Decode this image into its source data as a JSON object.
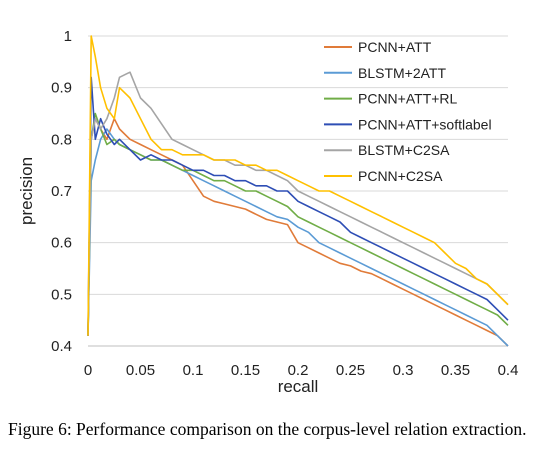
{
  "chart_data": {
    "type": "line",
    "title": "",
    "xlabel": "recall",
    "ylabel": "precision",
    "xlim": [
      0,
      0.4
    ],
    "ylim": [
      0.4,
      1
    ],
    "xticks": [
      "0",
      "0.05",
      "0.1",
      "0.15",
      "0.2",
      "0.25",
      "0.3",
      "0.35",
      "0.4"
    ],
    "yticks": [
      "0.4",
      "0.5",
      "0.6",
      "0.7",
      "0.8",
      "0.9",
      "1"
    ],
    "legend_position": "top-right",
    "series": [
      {
        "name": "PCNN+ATT",
        "color": "#e07b39",
        "x": [
          0.0,
          0.003,
          0.007,
          0.012,
          0.018,
          0.025,
          0.03,
          0.04,
          0.05,
          0.06,
          0.07,
          0.08,
          0.09,
          0.1,
          0.11,
          0.12,
          0.13,
          0.14,
          0.15,
          0.16,
          0.17,
          0.18,
          0.19,
          0.2,
          0.21,
          0.22,
          0.23,
          0.24,
          0.25,
          0.26,
          0.27,
          0.28,
          0.29,
          0.3,
          0.31,
          0.32,
          0.33,
          0.34,
          0.35,
          0.36,
          0.37,
          0.38,
          0.39,
          0.4
        ],
        "y": [
          0.42,
          0.8,
          0.84,
          0.82,
          0.8,
          0.84,
          0.82,
          0.8,
          0.79,
          0.78,
          0.77,
          0.76,
          0.75,
          0.72,
          0.69,
          0.68,
          0.675,
          0.67,
          0.665,
          0.655,
          0.645,
          0.64,
          0.635,
          0.6,
          0.59,
          0.58,
          0.57,
          0.56,
          0.555,
          0.545,
          0.54,
          0.53,
          0.52,
          0.51,
          0.5,
          0.49,
          0.48,
          0.47,
          0.46,
          0.45,
          0.44,
          0.43,
          0.42,
          0.4
        ]
      },
      {
        "name": "BLSTM+2ATT",
        "color": "#5b9bd5",
        "x": [
          0.0,
          0.003,
          0.007,
          0.012,
          0.018,
          0.025,
          0.03,
          0.04,
          0.05,
          0.06,
          0.07,
          0.08,
          0.09,
          0.1,
          0.11,
          0.12,
          0.13,
          0.14,
          0.15,
          0.16,
          0.17,
          0.18,
          0.19,
          0.2,
          0.21,
          0.22,
          0.23,
          0.24,
          0.25,
          0.26,
          0.27,
          0.28,
          0.29,
          0.3,
          0.31,
          0.32,
          0.33,
          0.34,
          0.35,
          0.36,
          0.37,
          0.38,
          0.39,
          0.4
        ],
        "y": [
          0.42,
          0.72,
          0.76,
          0.8,
          0.82,
          0.8,
          0.79,
          0.78,
          0.77,
          0.76,
          0.76,
          0.75,
          0.74,
          0.73,
          0.72,
          0.71,
          0.7,
          0.69,
          0.68,
          0.67,
          0.66,
          0.65,
          0.645,
          0.63,
          0.62,
          0.6,
          0.59,
          0.58,
          0.57,
          0.56,
          0.55,
          0.54,
          0.53,
          0.52,
          0.51,
          0.5,
          0.49,
          0.48,
          0.47,
          0.46,
          0.45,
          0.44,
          0.42,
          0.4
        ]
      },
      {
        "name": "PCNN+ATT+RL",
        "color": "#70ad47",
        "x": [
          0.0,
          0.003,
          0.007,
          0.012,
          0.018,
          0.025,
          0.03,
          0.04,
          0.05,
          0.06,
          0.07,
          0.08,
          0.09,
          0.1,
          0.11,
          0.12,
          0.13,
          0.14,
          0.15,
          0.16,
          0.17,
          0.18,
          0.19,
          0.2,
          0.21,
          0.22,
          0.23,
          0.24,
          0.25,
          0.26,
          0.27,
          0.28,
          0.29,
          0.3,
          0.31,
          0.32,
          0.33,
          0.34,
          0.35,
          0.36,
          0.37,
          0.38,
          0.39,
          0.4
        ],
        "y": [
          0.42,
          0.8,
          0.85,
          0.82,
          0.79,
          0.8,
          0.79,
          0.78,
          0.77,
          0.76,
          0.76,
          0.75,
          0.74,
          0.74,
          0.73,
          0.72,
          0.72,
          0.71,
          0.7,
          0.7,
          0.69,
          0.68,
          0.67,
          0.65,
          0.64,
          0.63,
          0.62,
          0.61,
          0.6,
          0.59,
          0.58,
          0.57,
          0.56,
          0.55,
          0.54,
          0.53,
          0.52,
          0.51,
          0.5,
          0.49,
          0.48,
          0.47,
          0.46,
          0.44
        ]
      },
      {
        "name": "PCNN+ATT+softlabel",
        "color": "#2e4eb5",
        "x": [
          0.0,
          0.003,
          0.007,
          0.012,
          0.018,
          0.025,
          0.03,
          0.04,
          0.05,
          0.06,
          0.07,
          0.08,
          0.09,
          0.1,
          0.11,
          0.12,
          0.13,
          0.14,
          0.15,
          0.16,
          0.17,
          0.18,
          0.19,
          0.2,
          0.21,
          0.22,
          0.23,
          0.24,
          0.25,
          0.26,
          0.27,
          0.28,
          0.29,
          0.3,
          0.31,
          0.32,
          0.33,
          0.34,
          0.35,
          0.36,
          0.37,
          0.38,
          0.39,
          0.4
        ],
        "y": [
          0.42,
          0.92,
          0.8,
          0.84,
          0.81,
          0.79,
          0.8,
          0.78,
          0.76,
          0.77,
          0.76,
          0.76,
          0.75,
          0.74,
          0.74,
          0.73,
          0.73,
          0.72,
          0.72,
          0.71,
          0.71,
          0.7,
          0.7,
          0.68,
          0.67,
          0.66,
          0.65,
          0.64,
          0.62,
          0.61,
          0.6,
          0.59,
          0.58,
          0.57,
          0.56,
          0.55,
          0.54,
          0.53,
          0.52,
          0.51,
          0.5,
          0.49,
          0.47,
          0.45
        ]
      },
      {
        "name": "BLSTM+C2SA",
        "color": "#a5a5a5",
        "x": [
          0.0,
          0.003,
          0.007,
          0.012,
          0.018,
          0.025,
          0.03,
          0.04,
          0.05,
          0.06,
          0.07,
          0.08,
          0.09,
          0.1,
          0.11,
          0.12,
          0.13,
          0.14,
          0.15,
          0.16,
          0.17,
          0.18,
          0.19,
          0.2,
          0.21,
          0.22,
          0.23,
          0.24,
          0.25,
          0.26,
          0.27,
          0.28,
          0.29,
          0.3,
          0.31,
          0.32,
          0.33,
          0.34,
          0.35,
          0.36,
          0.37,
          0.38,
          0.39,
          0.4
        ],
        "y": [
          0.42,
          0.8,
          0.84,
          0.82,
          0.84,
          0.88,
          0.92,
          0.93,
          0.88,
          0.86,
          0.83,
          0.8,
          0.79,
          0.78,
          0.77,
          0.76,
          0.76,
          0.75,
          0.75,
          0.74,
          0.74,
          0.73,
          0.72,
          0.7,
          0.69,
          0.68,
          0.67,
          0.66,
          0.65,
          0.64,
          0.63,
          0.62,
          0.61,
          0.6,
          0.59,
          0.58,
          0.57,
          0.56,
          0.55,
          0.54,
          0.53,
          0.52,
          0.5,
          0.48
        ]
      },
      {
        "name": "PCNN+C2SA",
        "color": "#ffc000",
        "x": [
          0.0,
          0.003,
          0.007,
          0.012,
          0.018,
          0.025,
          0.03,
          0.04,
          0.05,
          0.06,
          0.07,
          0.08,
          0.09,
          0.1,
          0.11,
          0.12,
          0.13,
          0.14,
          0.15,
          0.16,
          0.17,
          0.18,
          0.19,
          0.2,
          0.21,
          0.22,
          0.23,
          0.24,
          0.25,
          0.26,
          0.27,
          0.28,
          0.29,
          0.3,
          0.31,
          0.32,
          0.33,
          0.34,
          0.35,
          0.36,
          0.37,
          0.38,
          0.39,
          0.4
        ],
        "y": [
          0.42,
          1.0,
          0.96,
          0.9,
          0.86,
          0.84,
          0.9,
          0.88,
          0.84,
          0.8,
          0.78,
          0.78,
          0.77,
          0.77,
          0.77,
          0.76,
          0.76,
          0.76,
          0.75,
          0.75,
          0.74,
          0.74,
          0.73,
          0.72,
          0.71,
          0.7,
          0.7,
          0.69,
          0.68,
          0.67,
          0.66,
          0.65,
          0.64,
          0.63,
          0.62,
          0.61,
          0.6,
          0.58,
          0.56,
          0.55,
          0.53,
          0.52,
          0.5,
          0.48
        ]
      }
    ]
  },
  "caption": "Figure 6: Performance comparison on the corpus-level relation extraction."
}
